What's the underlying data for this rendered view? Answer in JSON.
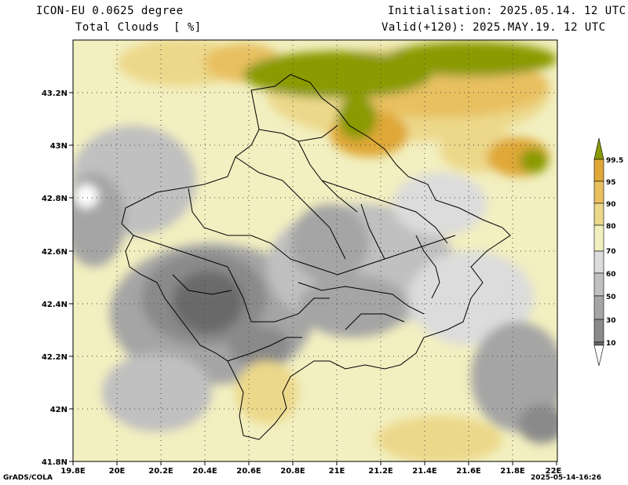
{
  "header": {
    "model": "ICON-EU 0.0625 degree",
    "variable": "Total Clouds  [ %]",
    "init": "Initialisation: 2025.05.14. 12 UTC",
    "valid": "Valid(+120): 2025.MAY.19. 12 UTC"
  },
  "footer": {
    "credit": "GrADS/COLA",
    "timestamp": "2025-05-14-16:26"
  },
  "map": {
    "lon_labels": [
      "19.8E",
      "20E",
      "20.2E",
      "20.4E",
      "20.6E",
      "20.8E",
      "21E",
      "21.2E",
      "21.4E",
      "21.6E",
      "21.8E",
      "22E"
    ],
    "lat_labels": [
      "43.2N",
      "43N",
      "42.8N",
      "42.6N",
      "42.4N",
      "42.2N",
      "42N",
      "41.8N"
    ]
  },
  "legend": {
    "levels": [
      "99.5",
      "95",
      "90",
      "80",
      "70",
      "60",
      "50",
      "30",
      "10"
    ],
    "colors": [
      "#ffffff",
      "#6b6b6b",
      "#8a8a8a",
      "#a5a5a5",
      "#c0c0c0",
      "#dcdcdc",
      "#f2efc0",
      "#ecd88a",
      "#e8c060",
      "#dfa838",
      "#8a9a06"
    ]
  }
}
